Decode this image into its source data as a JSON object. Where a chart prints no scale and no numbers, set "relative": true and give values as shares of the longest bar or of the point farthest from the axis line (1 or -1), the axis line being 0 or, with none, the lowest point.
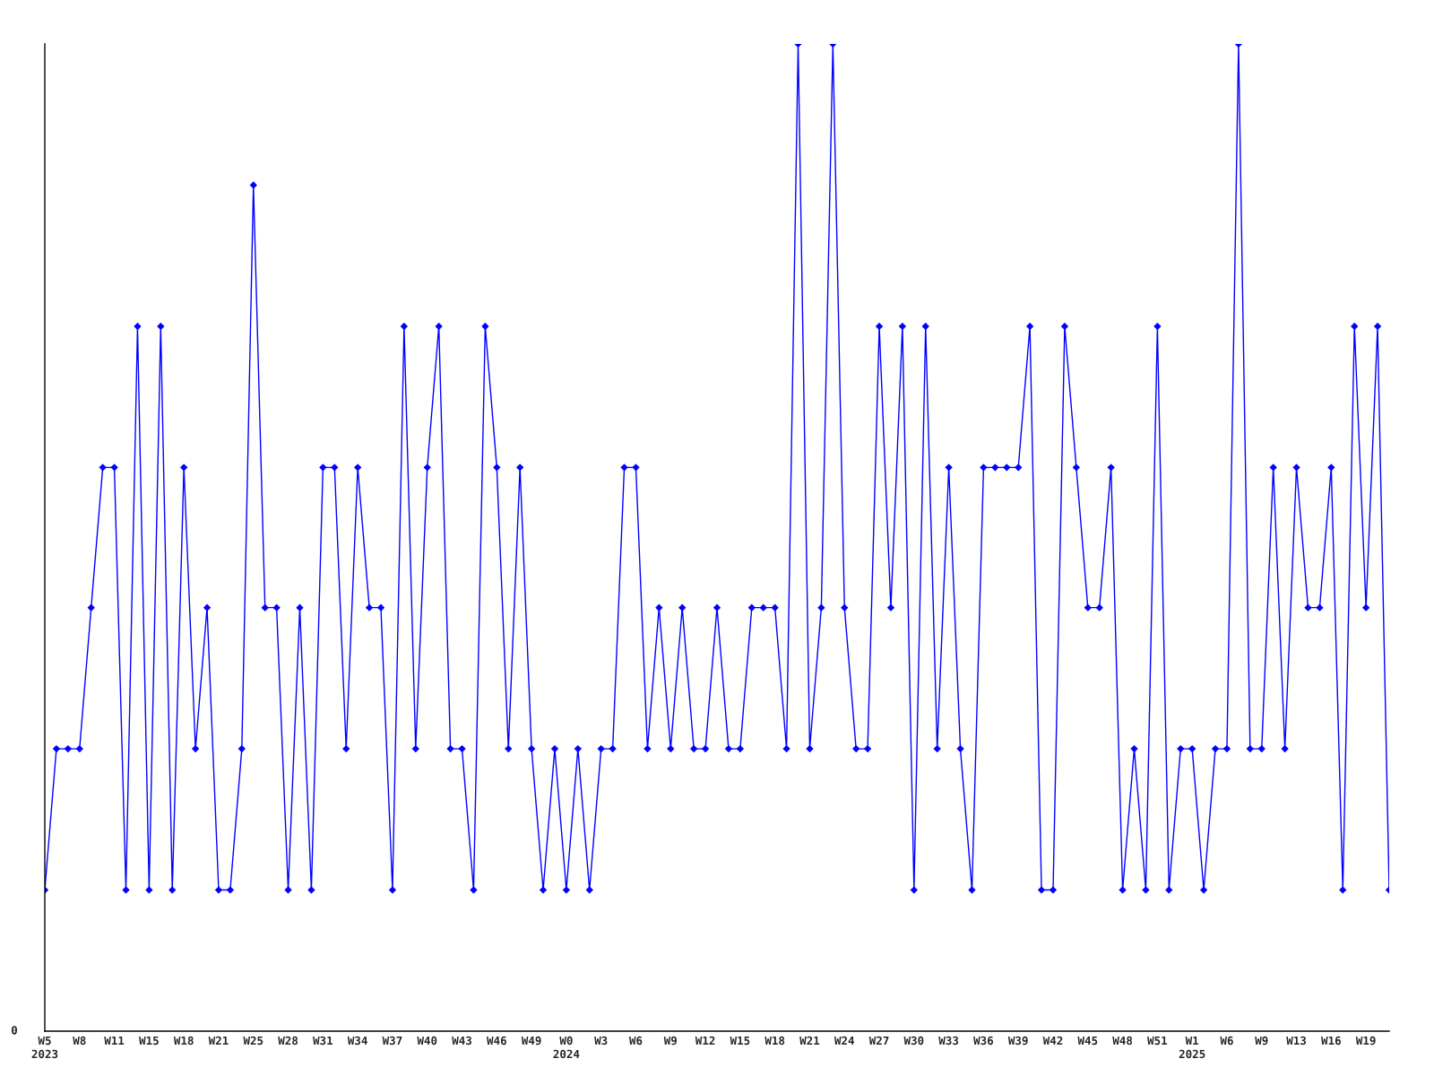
{
  "chart_data": {
    "type": "line",
    "relative": true,
    "color": "#0000ff",
    "marker": "diamond",
    "line_style": "solid",
    "grid": false,
    "legend": false,
    "annotations": [
      "0"
    ],
    "categories": [
      "W5\n2023",
      null,
      null,
      "W8",
      null,
      null,
      "W11",
      null,
      null,
      "W15",
      null,
      null,
      "W18",
      null,
      null,
      "W21",
      null,
      null,
      "W25",
      null,
      null,
      "W28",
      null,
      null,
      "W31",
      null,
      null,
      "W34",
      null,
      null,
      "W37",
      null,
      null,
      "W40",
      null,
      null,
      "W43",
      null,
      null,
      "W46",
      null,
      null,
      "W49",
      null,
      null,
      "W0\n2024",
      null,
      null,
      "W3",
      null,
      null,
      "W6",
      null,
      null,
      "W9",
      null,
      null,
      "W12",
      null,
      null,
      "W15",
      null,
      null,
      "W18",
      null,
      null,
      "W21",
      null,
      null,
      "W24",
      null,
      null,
      "W27",
      null,
      null,
      "W30",
      null,
      null,
      "W33",
      null,
      null,
      "W36",
      null,
      null,
      "W39",
      null,
      null,
      "W42",
      null,
      null,
      "W45",
      null,
      null,
      "W48",
      null,
      null,
      "W51",
      null,
      null,
      "W1\n2025",
      null,
      null,
      "W6",
      null,
      null,
      "W9",
      null,
      null,
      "W13",
      null,
      null,
      "W16",
      null,
      null,
      "W19",
      null,
      null
    ],
    "values": [
      0.143,
      0.286,
      0.286,
      0.286,
      0.429,
      0.571,
      0.571,
      0.143,
      0.714,
      0.143,
      0.714,
      0.143,
      0.571,
      0.286,
      0.429,
      0.143,
      0.143,
      0.286,
      0.857,
      0.429,
      0.429,
      0.143,
      0.429,
      0.143,
      0.571,
      0.571,
      0.286,
      0.571,
      0.429,
      0.429,
      0.143,
      0.714,
      0.286,
      0.571,
      0.714,
      0.286,
      0.286,
      0.143,
      0.714,
      0.571,
      0.286,
      0.571,
      0.286,
      0.143,
      0.286,
      0.143,
      0.286,
      0.143,
      0.286,
      0.286,
      0.571,
      0.571,
      0.286,
      0.429,
      0.286,
      0.429,
      0.286,
      0.286,
      0.429,
      0.286,
      0.286,
      0.429,
      0.429,
      0.429,
      0.286,
      1,
      0.286,
      0.429,
      1,
      0.429,
      0.286,
      0.286,
      0.714,
      0.429,
      0.714,
      0.143,
      0.714,
      0.286,
      0.571,
      0.286,
      0.143,
      0.571,
      0.571,
      0.571,
      0.571,
      0.714,
      0.143,
      0.143,
      0.714,
      0.571,
      0.429,
      0.429,
      0.571,
      0.143,
      0.286,
      0.143,
      0.714,
      0.143,
      0.286,
      0.286,
      0.143,
      0.286,
      0.286,
      1,
      0.286,
      0.286,
      0.571,
      0.286,
      0.571,
      0.429,
      0.429,
      0.571,
      0.143,
      0.714,
      0.429,
      0.714,
      0.143
    ]
  }
}
